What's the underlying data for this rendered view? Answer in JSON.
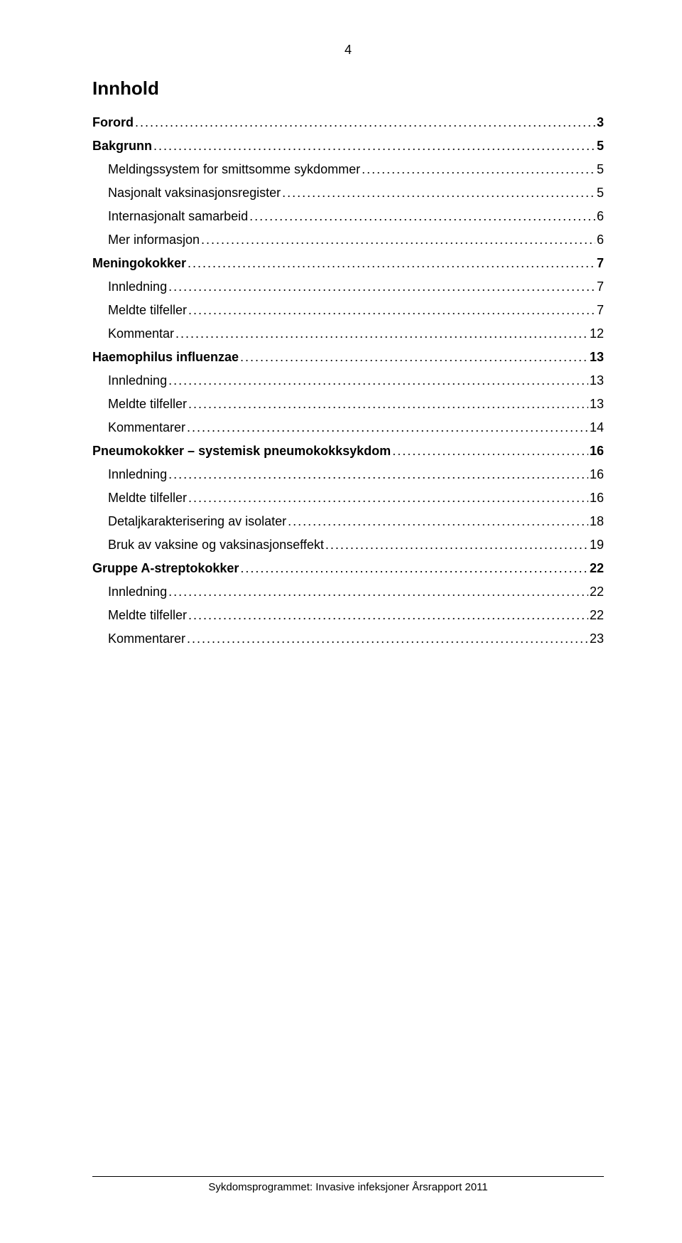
{
  "pageNumber": "4",
  "title": "Innhold",
  "toc": [
    {
      "label": "Forord",
      "page": "3",
      "level": 0,
      "bold": true
    },
    {
      "label": "Bakgrunn",
      "page": "5",
      "level": 0,
      "bold": true
    },
    {
      "label": "Meldingssystem for smittsomme sykdommer",
      "page": "5",
      "level": 1,
      "bold": false
    },
    {
      "label": "Nasjonalt vaksinasjonsregister",
      "page": "5",
      "level": 1,
      "bold": false
    },
    {
      "label": "Internasjonalt samarbeid",
      "page": "6",
      "level": 1,
      "bold": false
    },
    {
      "label": "Mer informasjon",
      "page": "6",
      "level": 1,
      "bold": false
    },
    {
      "label": "Meningokokker",
      "page": "7",
      "level": 0,
      "bold": true
    },
    {
      "label": "Innledning",
      "page": "7",
      "level": 1,
      "bold": false
    },
    {
      "label": "Meldte tilfeller",
      "page": "7",
      "level": 1,
      "bold": false
    },
    {
      "label": "Kommentar",
      "page": "12",
      "level": 1,
      "bold": false
    },
    {
      "label": "Haemophilus influenzae",
      "page": "13",
      "level": 0,
      "bold": true
    },
    {
      "label": "Innledning",
      "page": "13",
      "level": 1,
      "bold": false
    },
    {
      "label": "Meldte tilfeller",
      "page": "13",
      "level": 1,
      "bold": false
    },
    {
      "label": "Kommentarer",
      "page": "14",
      "level": 1,
      "bold": false
    },
    {
      "label": "Pneumokokker – systemisk pneumokokksykdom",
      "page": "16",
      "level": 0,
      "bold": true
    },
    {
      "label": "Innledning",
      "page": "16",
      "level": 1,
      "bold": false
    },
    {
      "label": "Meldte tilfeller",
      "page": "16",
      "level": 1,
      "bold": false
    },
    {
      "label": "Detaljkarakterisering av isolater",
      "page": "18",
      "level": 1,
      "bold": false
    },
    {
      "label": "Bruk av vaksine og vaksinasjonseffekt",
      "page": "19",
      "level": 1,
      "bold": false
    },
    {
      "label": "Gruppe A-streptokokker",
      "page": "22",
      "level": 0,
      "bold": true
    },
    {
      "label": "Innledning",
      "page": "22",
      "level": 1,
      "bold": false
    },
    {
      "label": "Meldte tilfeller",
      "page": "22",
      "level": 1,
      "bold": false
    },
    {
      "label": "Kommentarer",
      "page": "23",
      "level": 1,
      "bold": false
    }
  ],
  "footer": "Sykdomsprogrammet: Invasive infeksjoner Årsrapport 2011"
}
